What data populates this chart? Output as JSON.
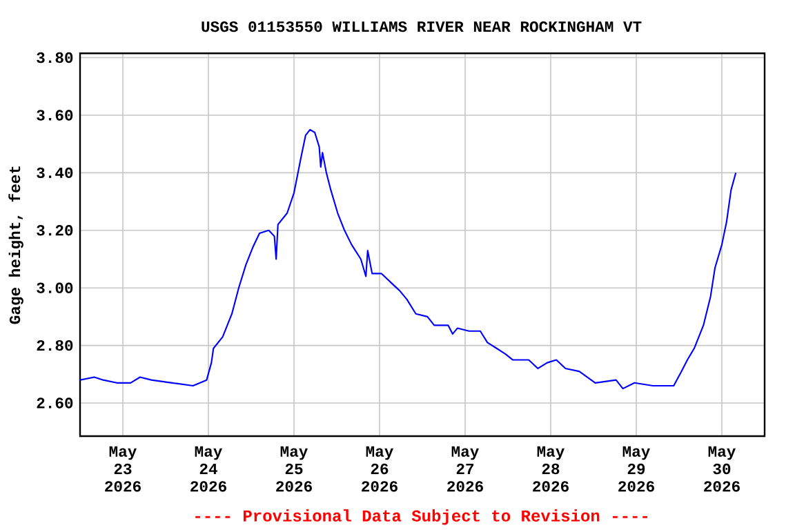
{
  "chart_data": {
    "type": "line",
    "title": "USGS 01153550 WILLIAMS RIVER NEAR ROCKINGHAM VT",
    "ylabel": "Gage height, feet",
    "annotations": [
      "---- Provisional Data Subject to Revision ----"
    ],
    "x": [
      "2026-05-23T00:00",
      "2026-05-23T04:00",
      "2026-05-23T06:30",
      "2026-05-23T10:20",
      "2026-05-23T14:10",
      "2026-05-23T16:50",
      "2026-05-23T20:00",
      "2026-05-24T01:50",
      "2026-05-24T07:40",
      "2026-05-24T11:30",
      "2026-05-24T12:50",
      "2026-05-24T13:25",
      "2026-05-24T16:00",
      "2026-05-24T18:35",
      "2026-05-24T20:30",
      "2026-05-24T22:30",
      "2026-05-25T00:25",
      "2026-05-25T02:20",
      "2026-05-25T04:55",
      "2026-05-25T06:30",
      "2026-05-25T07:00",
      "2026-05-25T07:30",
      "2026-05-25T10:05",
      "2026-05-25T12:00",
      "2026-05-25T13:55",
      "2026-05-25T15:15",
      "2026-05-25T16:30",
      "2026-05-25T17:50",
      "2026-05-25T19:05",
      "2026-05-25T19:30",
      "2026-05-25T20:00",
      "2026-05-25T21:05",
      "2026-05-25T22:20",
      "2026-05-26T00:15",
      "2026-05-26T02:10",
      "2026-05-26T04:10",
      "2026-05-26T06:45",
      "2026-05-26T08:10",
      "2026-05-26T08:40",
      "2026-05-26T09:55",
      "2026-05-26T12:30",
      "2026-05-26T15:05",
      "2026-05-26T17:40",
      "2026-05-26T19:40",
      "2026-05-26T22:10",
      "2026-05-27T01:25",
      "2026-05-27T03:20",
      "2026-05-27T07:15",
      "2026-05-27T08:30",
      "2026-05-27T09:50",
      "2026-05-27T13:05",
      "2026-05-27T16:15",
      "2026-05-27T18:15",
      "2026-05-27T20:50",
      "2026-05-27T23:20",
      "2026-05-28T01:20",
      "2026-05-28T03:15",
      "2026-05-28T05:50",
      "2026-05-28T08:25",
      "2026-05-28T11:00",
      "2026-05-28T13:35",
      "2026-05-28T16:10",
      "2026-05-28T20:00",
      "2026-05-29T00:30",
      "2026-05-29T06:20",
      "2026-05-29T08:15",
      "2026-05-29T11:30",
      "2026-05-29T16:40",
      "2026-05-29T22:30",
      "2026-05-30T00:40",
      "2026-05-30T02:20",
      "2026-05-30T04:15",
      "2026-05-30T06:50",
      "2026-05-30T08:50",
      "2026-05-30T10:05",
      "2026-05-30T12:00",
      "2026-05-30T13:20",
      "2026-05-30T14:35",
      "2026-05-30T15:55"
    ],
    "series": [
      {
        "color": "#0000ff",
        "values": [
          2.68,
          2.69,
          2.68,
          2.67,
          2.67,
          2.69,
          2.68,
          2.67,
          2.66,
          2.68,
          2.74,
          2.79,
          2.83,
          2.91,
          3.0,
          3.08,
          3.14,
          3.19,
          3.2,
          3.18,
          3.1,
          3.22,
          3.26,
          3.33,
          3.45,
          3.53,
          3.55,
          3.54,
          3.49,
          3.42,
          3.47,
          3.4,
          3.34,
          3.26,
          3.2,
          3.15,
          3.1,
          3.04,
          3.13,
          3.05,
          3.05,
          3.02,
          2.99,
          2.96,
          2.91,
          2.9,
          2.87,
          2.87,
          2.84,
          2.86,
          2.85,
          2.85,
          2.81,
          2.79,
          2.77,
          2.75,
          2.75,
          2.75,
          2.72,
          2.74,
          2.75,
          2.72,
          2.71,
          2.67,
          2.68,
          2.65,
          2.67,
          2.66,
          2.66,
          2.71,
          2.75,
          2.79,
          2.87,
          2.97,
          3.07,
          3.15,
          3.23,
          3.34,
          3.4
        ]
      }
    ],
    "xlim": [
      "2026-05-23T00:00",
      "2026-05-31T00:00"
    ],
    "xticks": [
      {
        "value": "2026-05-23T12:00",
        "label": "May 23 2026"
      },
      {
        "value": "2026-05-24T12:00",
        "label": "May 24 2026"
      },
      {
        "value": "2026-05-25T12:00",
        "label": "May 25 2026"
      },
      {
        "value": "2026-05-26T12:00",
        "label": "May 26 2026"
      },
      {
        "value": "2026-05-27T12:00",
        "label": "May 27 2026"
      },
      {
        "value": "2026-05-28T12:00",
        "label": "May 28 2026"
      },
      {
        "value": "2026-05-29T12:00",
        "label": "May 29 2026"
      },
      {
        "value": "2026-05-30T12:00",
        "label": "May 30 2026"
      }
    ],
    "ylim": [
      2.485,
      3.815
    ],
    "yticks": [
      {
        "value": 2.6,
        "label": "2.60"
      },
      {
        "value": 2.8,
        "label": "2.80"
      },
      {
        "value": 3.0,
        "label": "3.00"
      },
      {
        "value": 3.2,
        "label": "3.20"
      },
      {
        "value": 3.4,
        "label": "3.40"
      },
      {
        "value": 3.6,
        "label": "3.60"
      },
      {
        "value": 3.8,
        "label": "3.80"
      }
    ],
    "grid": true,
    "marker": "none",
    "line_style": "solid"
  }
}
